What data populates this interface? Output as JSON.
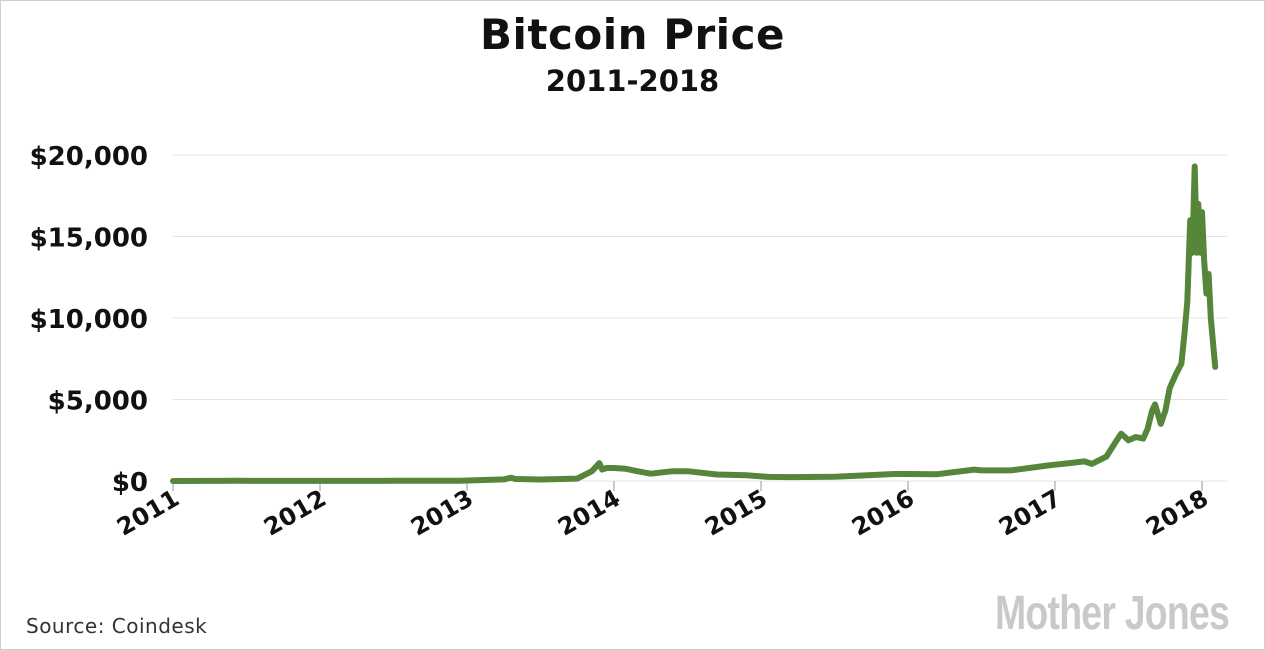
{
  "chart_data": {
    "type": "line",
    "title": "Bitcoin Price",
    "subtitle": "2011-2018",
    "xlabel": "",
    "ylabel": "",
    "x_ticks": [
      "2011",
      "2012",
      "2013",
      "2014",
      "2015",
      "2016",
      "2017",
      "2018"
    ],
    "y_ticks": [
      "$0",
      "$5,000",
      "$10,000",
      "$15,000",
      "$20,000"
    ],
    "xlim": [
      2011.0,
      2018.1
    ],
    "ylim": [
      0,
      20000
    ],
    "grid": true,
    "line_color": "#55863a",
    "series": [
      {
        "x": [
          2011.0,
          2011.45,
          2011.9,
          2012.5,
          2012.95,
          2013.25,
          2013.3,
          2013.33,
          2013.5,
          2013.75,
          2013.85,
          2013.9,
          2013.92,
          2013.95,
          2014.0,
          2014.08,
          2014.15,
          2014.25,
          2014.4,
          2014.5,
          2014.7,
          2014.9,
          2015.05,
          2015.2,
          2015.5,
          2015.8,
          2015.9,
          2016.0,
          2016.2,
          2016.45,
          2016.5,
          2016.7,
          2016.95,
          2017.0,
          2017.1,
          2017.2,
          2017.25,
          2017.35,
          2017.42,
          2017.45,
          2017.5,
          2017.55,
          2017.6,
          2017.63,
          2017.66,
          2017.68,
          2017.72,
          2017.75,
          2017.78,
          2017.82,
          2017.86,
          2017.88,
          2017.9,
          2017.92,
          2017.935,
          2017.95,
          2017.965,
          2017.975,
          2017.99,
          2018.0,
          2018.015,
          2018.03,
          2018.045,
          2018.06,
          2018.075,
          2018.09
        ],
        "y": [
          0,
          15,
          4,
          10,
          13,
          100,
          200,
          120,
          90,
          150,
          600,
          1100,
          700,
          800,
          800,
          750,
          620,
          450,
          600,
          600,
          400,
          350,
          250,
          240,
          260,
          380,
          430,
          430,
          420,
          700,
          650,
          650,
          950,
          1000,
          1100,
          1200,
          1050,
          1500,
          2500,
          2900,
          2500,
          2700,
          2600,
          3200,
          4300,
          4700,
          3500,
          4300,
          5700,
          6500,
          7200,
          9000,
          11000,
          16000,
          14000,
          19300,
          14000,
          17000,
          14000,
          16500,
          13500,
          11500,
          12700,
          10000,
          8500,
          7000
        ]
      }
    ]
  },
  "footer": {
    "source": "Source:  Coindesk",
    "logo": "Mother Jones"
  }
}
